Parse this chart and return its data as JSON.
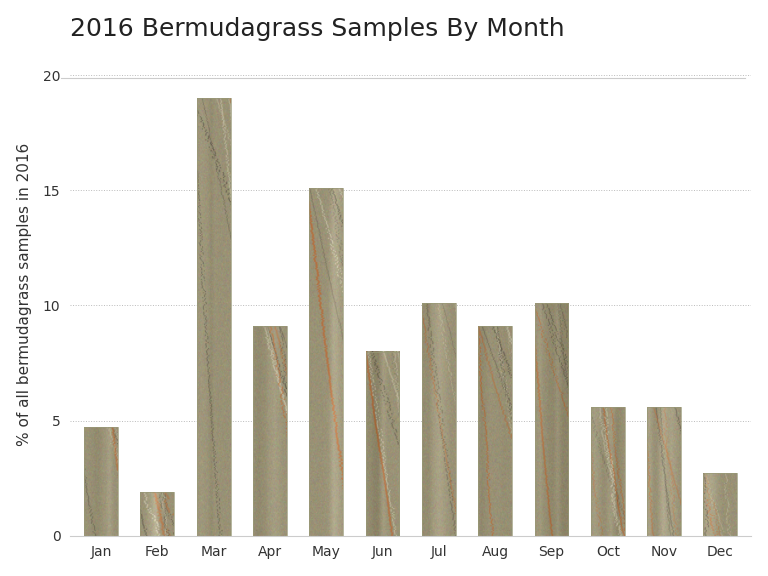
{
  "title": "2016 Bermudagrass Samples By Month",
  "xlabel": "",
  "ylabel": "% of all bermudagrass samples in 2016",
  "months": [
    "Jan",
    "Feb",
    "Mar",
    "Apr",
    "May",
    "Jun",
    "Jul",
    "Aug",
    "Sep",
    "Oct",
    "Nov",
    "Dec"
  ],
  "values": [
    4.7,
    1.9,
    19.0,
    9.1,
    15.1,
    8.0,
    10.1,
    9.1,
    10.1,
    5.6,
    5.6,
    2.7
  ],
  "ylim": [
    0,
    21
  ],
  "yticks": [
    0,
    5,
    10,
    15,
    20
  ],
  "base_stone_color": [
    0.58,
    0.56,
    0.46
  ],
  "background_color": "#ffffff",
  "title_fontsize": 18,
  "axis_fontsize": 11,
  "tick_fontsize": 10,
  "bar_width": 0.6
}
